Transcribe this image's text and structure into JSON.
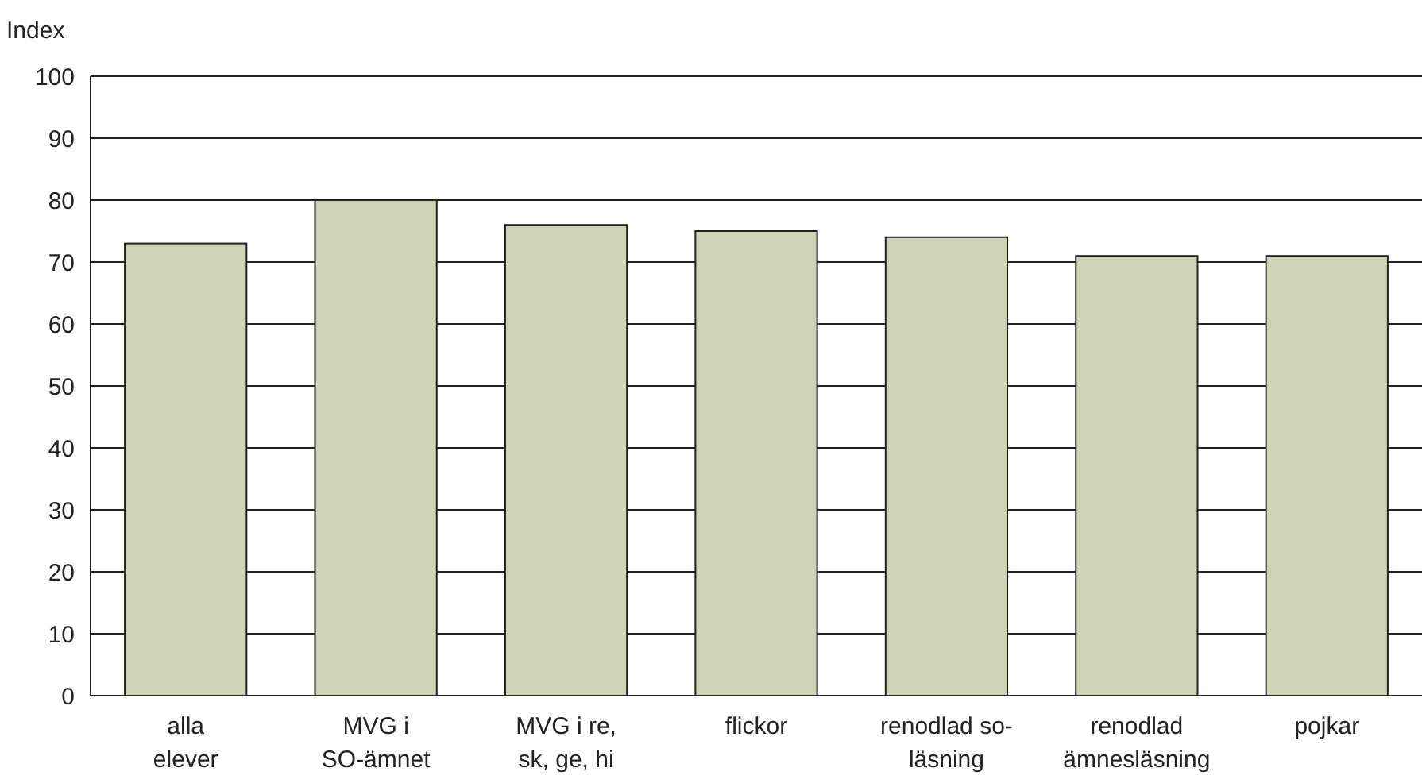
{
  "chart_data": {
    "type": "bar",
    "ylabel": "Index",
    "categories": [
      "alla\nelever",
      "MVG i\nSO-ämnet",
      "MVG i re,\nsk, ge, hi",
      "flickor",
      "renodlad so-\nläsning",
      "renodlad\nämnesläsning",
      "pojkar"
    ],
    "values": [
      73,
      80,
      76,
      75,
      74,
      71,
      71
    ],
    "color": "#ced3b6",
    "ylim": [
      0,
      100
    ],
    "yticks": [
      0,
      10,
      20,
      30,
      40,
      50,
      60,
      70,
      80,
      90,
      100
    ],
    "grid": "y"
  }
}
